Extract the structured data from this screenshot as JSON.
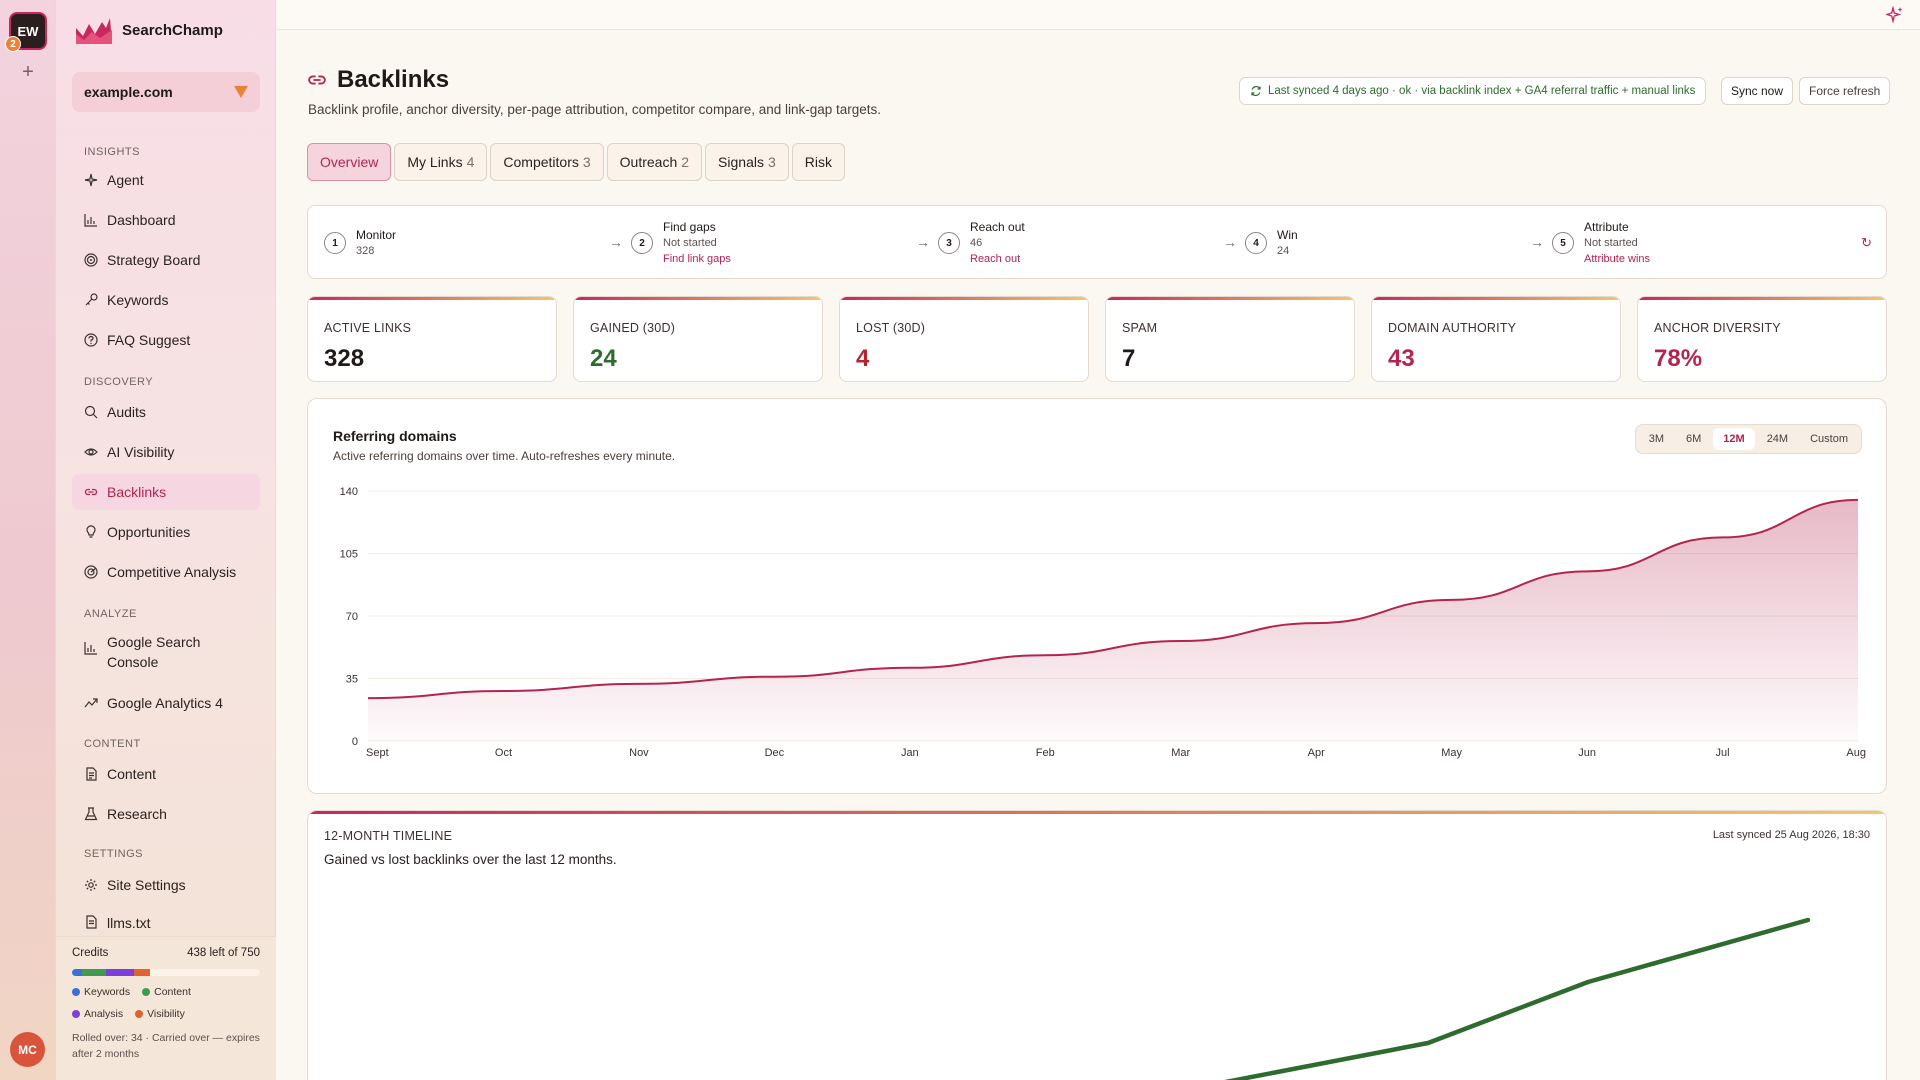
{
  "workspace": {
    "initials": "EW",
    "count": "2",
    "add": "+"
  },
  "user": {
    "initials": "MC"
  },
  "brand": {
    "name": "SearchChamp"
  },
  "site": {
    "value": "example.com"
  },
  "sidebar": {
    "sections": [
      "INSIGHTS",
      "DISCOVERY",
      "ANALYZE",
      "CONTENT",
      "SETTINGS"
    ],
    "items": [
      {
        "label": "Agent",
        "icon": "sparkle-icon"
      },
      {
        "label": "Dashboard",
        "icon": "bar-chart-icon"
      },
      {
        "label": "Strategy Board",
        "icon": "target-icon"
      },
      {
        "label": "Keywords",
        "icon": "key-icon"
      },
      {
        "label": "FAQ Suggest",
        "icon": "question-icon"
      },
      {
        "label": "Audits",
        "icon": "search-icon"
      },
      {
        "label": "AI Visibility",
        "icon": "eye-icon"
      },
      {
        "label": "Backlinks",
        "icon": "link-icon"
      },
      {
        "label": "Opportunities",
        "icon": "lightbulb-icon"
      },
      {
        "label": "Competitive Analysis",
        "icon": "radar-icon"
      },
      {
        "label": "Google Search Console",
        "icon": "bar-chart-icon"
      },
      {
        "label": "Google Analytics 4",
        "icon": "trend-icon"
      },
      {
        "label": "Content",
        "icon": "document-icon"
      },
      {
        "label": "Research",
        "icon": "flask-icon"
      },
      {
        "label": "Site Settings",
        "icon": "gear-icon"
      },
      {
        "label": "llms.txt",
        "icon": "document-icon"
      }
    ]
  },
  "credits": {
    "label": "Credits",
    "remaining": "438 left of 750",
    "legend": [
      "Keywords",
      "Content",
      "Analysis",
      "Visibility"
    ],
    "note": "Rolled over: 34 · Carried over — expires after 2 months",
    "colors": [
      "#3b6fd8",
      "#3f9b52",
      "#7c3fd8",
      "#e0622e"
    ]
  },
  "page": {
    "title": "Backlinks",
    "subtitle": "Backlink profile, anchor diversity, per-page attribution, competitor compare, and link-gap targets.",
    "sync_status": "Last synced 4 days ago · ok · via backlink index + GA4 referral traffic + manual links",
    "sync_now": "Sync now",
    "force_refresh": "Force refresh"
  },
  "tabs": [
    {
      "label": "Overview",
      "count": ""
    },
    {
      "label": "My Links",
      "count": "4"
    },
    {
      "label": "Competitors",
      "count": "3"
    },
    {
      "label": "Outreach",
      "count": "2"
    },
    {
      "label": "Signals",
      "count": "3"
    },
    {
      "label": "Risk",
      "count": ""
    }
  ],
  "steps": [
    {
      "num": "1",
      "title": "Monitor",
      "status": "328",
      "link": ""
    },
    {
      "num": "2",
      "title": "Find gaps",
      "status": "Not started",
      "link": "Find link gaps"
    },
    {
      "num": "3",
      "title": "Reach out",
      "status": "46",
      "link": "Reach out"
    },
    {
      "num": "4",
      "title": "Win",
      "status": "24",
      "link": ""
    },
    {
      "num": "5",
      "title": "Attribute",
      "status": "Not started",
      "link": "Attribute wins"
    }
  ],
  "kpis": [
    {
      "label": "ACTIVE LINKS",
      "value": "328",
      "color": "#1f1a17"
    },
    {
      "label": "GAINED (30D)",
      "value": "24",
      "color": "#2e6b2e"
    },
    {
      "label": "LOST (30D)",
      "value": "4",
      "color": "#b3242f"
    },
    {
      "label": "SPAM",
      "value": "7",
      "color": "#1f1a17"
    },
    {
      "label": "DOMAIN AUTHORITY",
      "value": "43",
      "color": "#b3244f"
    },
    {
      "label": "ANCHOR DIVERSITY",
      "value": "78%",
      "color": "#b3244f"
    }
  ],
  "chart": {
    "title": "Referring domains",
    "subtitle": "Active referring domains over time. Auto-refreshes every minute.",
    "ranges": [
      "3M",
      "6M",
      "12M",
      "24M",
      "Custom"
    ],
    "active_range": "12M"
  },
  "chart_data": {
    "type": "area",
    "categories": [
      "Sept",
      "Oct",
      "Nov",
      "Dec",
      "Jan",
      "Feb",
      "Mar",
      "Apr",
      "May",
      "Jun",
      "Jul",
      "Aug"
    ],
    "values": [
      24,
      28,
      32,
      36,
      41,
      48,
      56,
      66,
      79,
      95,
      114,
      135
    ],
    "yticks": [
      0,
      35,
      70,
      105,
      140
    ],
    "ylim": [
      0,
      140
    ],
    "color": "#b3244f"
  },
  "timeline": {
    "title": "12-MONTH TIMELINE",
    "subtitle": "Gained vs lost backlinks over the last 12 months.",
    "synced": "Last synced 25 Aug 2026, 18:30",
    "line_color": "#2e6b2e"
  }
}
